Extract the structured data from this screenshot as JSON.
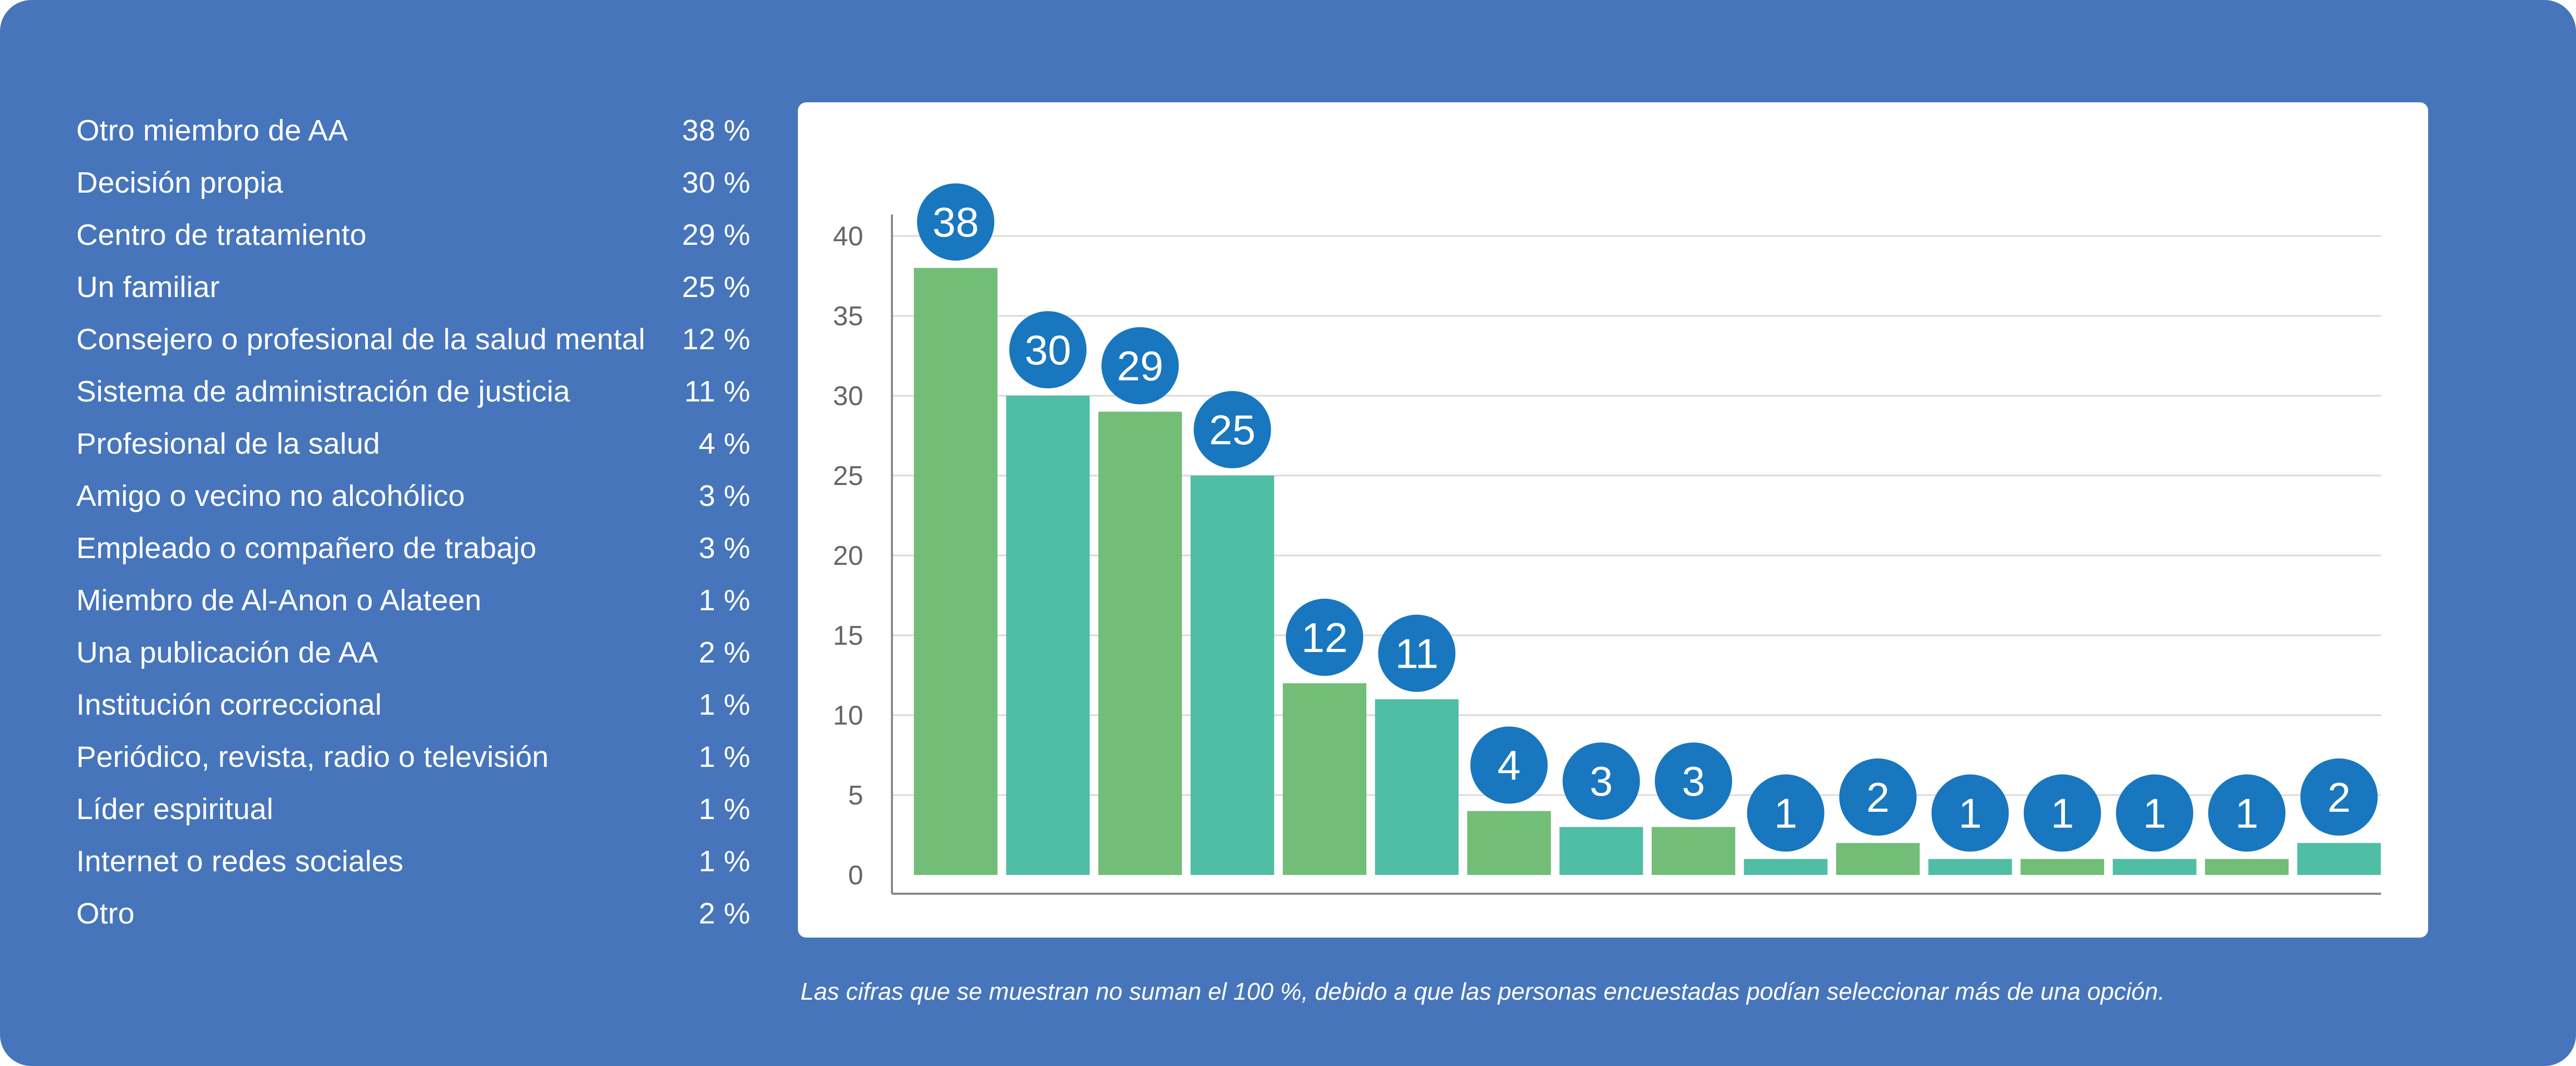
{
  "colors": {
    "background": "#4675BC",
    "bar_green": "#72BE78",
    "bar_teal": "#50BDA5",
    "label_bubble": "#1877BE",
    "gridline": "#D9D9D9",
    "axis": "#888888",
    "tick_text": "#666666"
  },
  "legend": [
    {
      "label": "Otro miembro de AA",
      "value": "38 %"
    },
    {
      "label": "Decisión propia",
      "value": "30 %"
    },
    {
      "label": "Centro de tratamiento",
      "value": "29 %"
    },
    {
      "label": "Un familiar",
      "value": "25 %"
    },
    {
      "label": "Consejero o profesional de la salud mental",
      "value": "12 %"
    },
    {
      "label": "Sistema de administración de justicia",
      "value": "11 %"
    },
    {
      "label": "Profesional de la salud",
      "value": "4 %"
    },
    {
      "label": "Amigo o vecino no alcohólico",
      "value": "3 %"
    },
    {
      "label": "Empleado o compañero de trabajo",
      "value": "3 %"
    },
    {
      "label": "Miembro de Al-Anon o Alateen",
      "value": "1 %"
    },
    {
      "label": "Una publicación de AA",
      "value": "2 %"
    },
    {
      "label": "Institución correccional",
      "value": "1 %"
    },
    {
      "label": "Periódico, revista, radio o televisión",
      "value": "1 %"
    },
    {
      "label": "Líder espiritual",
      "value": "1 %"
    },
    {
      "label": "Internet o redes sociales",
      "value": "1 %"
    },
    {
      "label": "Otro",
      "value": "2 %"
    }
  ],
  "chart_data": {
    "type": "bar",
    "title": "",
    "xlabel": "",
    "ylabel": "",
    "categories": [
      "Otro miembro de AA",
      "Decisión propia",
      "Centro de tratamiento",
      "Un familiar",
      "Consejero o profesional de la salud mental",
      "Sistema de administración de justicia",
      "Profesional de la salud",
      "Amigo o vecino no alcohólico",
      "Empleado o compañero de trabajo",
      "Miembro de Al-Anon o Alateen",
      "Una publicación de AA",
      "Institución correccional",
      "Periódico, revista, radio o televisión",
      "Líder espiritual",
      "Internet o redes sociales",
      "Otro"
    ],
    "values": [
      38,
      30,
      29,
      25,
      12,
      11,
      4,
      3,
      3,
      1,
      2,
      1,
      1,
      1,
      1,
      2
    ],
    "data_labels": [
      "38",
      "30",
      "29",
      "25",
      "12",
      "11",
      "4",
      "3",
      "3",
      "1",
      "2",
      "1",
      "1",
      "1",
      "1",
      "2"
    ],
    "ylim": [
      0,
      40
    ],
    "yticks": [
      0,
      5,
      10,
      15,
      20,
      25,
      30,
      35,
      40
    ],
    "ytick_labels": [
      "0",
      "5",
      "10",
      "15",
      "20",
      "25",
      "30",
      "35",
      "40"
    ],
    "grid": true,
    "legend_position": "left"
  },
  "footnote": "Las cifras que se muestran no suman el 100 %, debido a que las personas encuestadas podían seleccionar más de una opción."
}
